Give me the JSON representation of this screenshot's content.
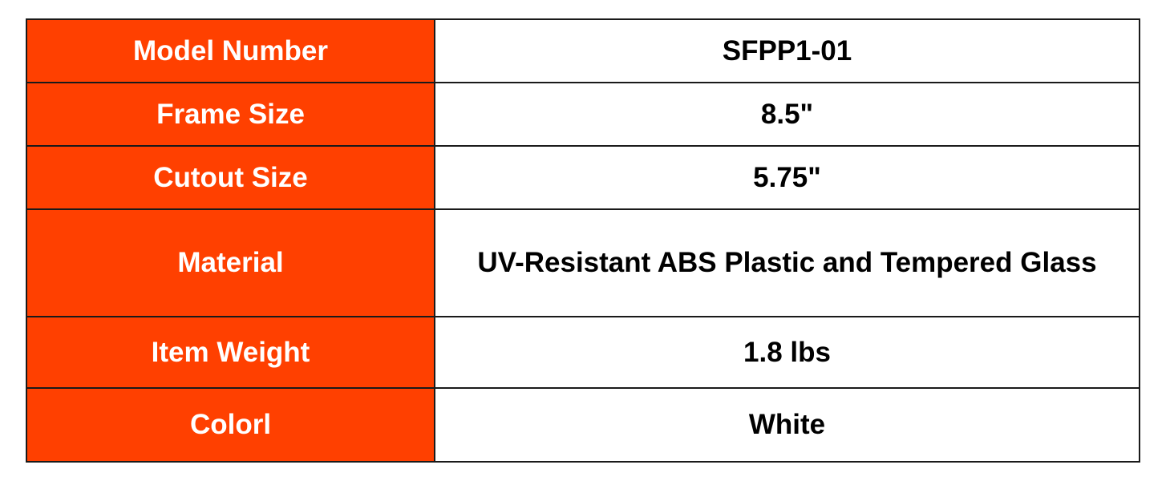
{
  "colors": {
    "label_bg": "#FF4000",
    "label_text": "#FFFFFF",
    "value_bg": "#FFFFFF"
  },
  "rows": [
    {
      "label": "Model Number",
      "value": "SFPP1-01"
    },
    {
      "label": "Frame Size",
      "value": "8.5\""
    },
    {
      "label": "Cutout Size",
      "value": "5.75\""
    },
    {
      "label": "Material",
      "value": "UV-Resistant ABS Plastic and Tempered Glass"
    },
    {
      "label": "Item Weight",
      "value": "1.8 lbs"
    },
    {
      "label": "Colorl",
      "value": "White"
    }
  ]
}
